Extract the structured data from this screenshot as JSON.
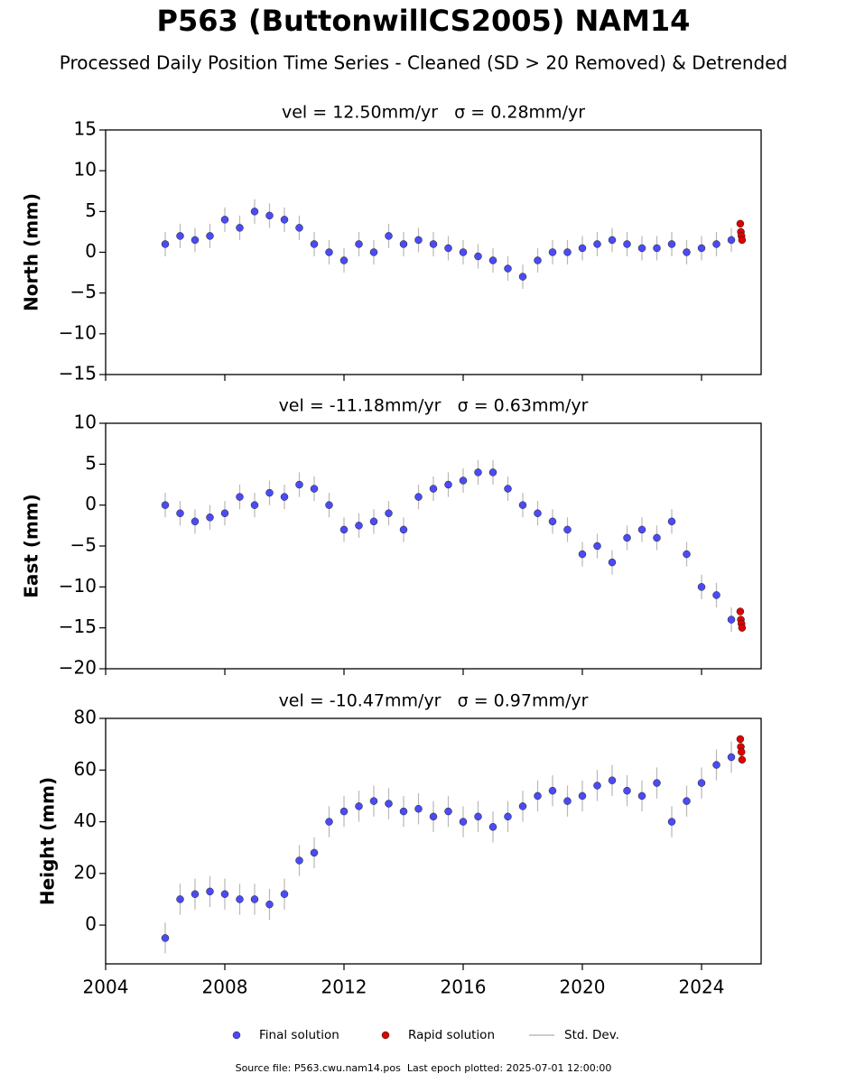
{
  "title": "P563 (ButtonwillCS2005) NAM14",
  "subtitle": "Processed Daily Position Time Series - Cleaned (SD > 20 Removed) & Detrended",
  "source": "Source file: P563.cwu.nam14.pos  Last epoch plotted: 2025-07-01 12:00:00",
  "error_label": "Std. Dev.",
  "chart_data": [
    {
      "type": "scatter",
      "title": "vel = 12.50mm/yr   σ = 0.28mm/yr",
      "ylabel": "North (mm)",
      "xlim": [
        2004,
        2026
      ],
      "xticks": [
        2004,
        2008,
        2012,
        2016,
        2020,
        2024
      ],
      "ylim": [
        -15,
        15
      ],
      "yticks": [
        {
          "value": -15,
          "label": "−15"
        },
        {
          "value": -10,
          "label": "−10"
        },
        {
          "value": -5,
          "label": "−5"
        },
        0,
        5,
        10,
        15
      ],
      "error": 1.5,
      "series": [
        {
          "name": "Final solution",
          "color": "#4b4bf5",
          "x": [
            2006,
            2006.5,
            2007,
            2007.5,
            2008,
            2008.5,
            2009,
            2009.5,
            2010,
            2010.5,
            2011,
            2011.5,
            2012,
            2012.5,
            2013,
            2013.5,
            2014,
            2014.5,
            2015,
            2015.5,
            2016,
            2016.5,
            2017,
            2017.5,
            2018,
            2018.5,
            2019,
            2019.5,
            2020,
            2020.5,
            2021,
            2021.5,
            2022,
            2022.5,
            2023,
            2023.5,
            2024,
            2024.5,
            2025
          ],
          "values": [
            1,
            2,
            1.5,
            2,
            4,
            3,
            5,
            4.5,
            4,
            3,
            1,
            0,
            -1,
            1,
            0,
            2,
            1,
            1.5,
            1,
            0.5,
            0,
            -0.5,
            -1,
            -2,
            -3,
            -1,
            0,
            0,
            0.5,
            1,
            1.5,
            1,
            0.5,
            0.5,
            1,
            0,
            0.5,
            1,
            1.5
          ]
        },
        {
          "name": "Rapid solution",
          "color": "#e00000",
          "x": [
            2025.3,
            2025.32,
            2025.34,
            2025.36
          ],
          "values": [
            3.5,
            2.5,
            2,
            1.5
          ]
        }
      ]
    },
    {
      "type": "scatter",
      "title": "vel = -11.18mm/yr   σ = 0.63mm/yr",
      "ylabel": "East (mm)",
      "xlim": [
        2004,
        2026
      ],
      "xticks": [
        2004,
        2008,
        2012,
        2016,
        2020,
        2024
      ],
      "ylim": [
        -20,
        10
      ],
      "yticks": [
        {
          "value": -20,
          "label": "−20"
        },
        {
          "value": -15,
          "label": "−15"
        },
        {
          "value": -10,
          "label": "−10"
        },
        {
          "value": -5,
          "label": "−5"
        },
        0,
        5,
        10
      ],
      "error": 1.5,
      "series": [
        {
          "color": "#4b4bf5",
          "x": [
            2006,
            2006.5,
            2007,
            2007.5,
            2008,
            2008.5,
            2009,
            2009.5,
            2010,
            2010.5,
            2011,
            2011.5,
            2012,
            2012.5,
            2013,
            2013.5,
            2014,
            2014.5,
            2015,
            2015.5,
            2016,
            2016.5,
            2017,
            2017.5,
            2018,
            2018.5,
            2019,
            2019.5,
            2020,
            2020.5,
            2021,
            2021.5,
            2022,
            2022.5,
            2023,
            2023.5,
            2024,
            2024.5,
            2025
          ],
          "values": [
            0,
            -1,
            -2,
            -1.5,
            -1,
            1,
            0,
            1.5,
            1,
            2.5,
            2,
            0,
            -3,
            -2.5,
            -2,
            -1,
            -3,
            1,
            2,
            2.5,
            3,
            4,
            4,
            2,
            0,
            -1,
            -2,
            -3,
            -6,
            -5,
            -7,
            -4,
            -3,
            -4,
            -2,
            -6,
            -10,
            -11,
            -14
          ]
        },
        {
          "color": "#e00000",
          "x": [
            2025.3,
            2025.32,
            2025.34,
            2025.36
          ],
          "values": [
            -13,
            -14,
            -14.5,
            -15
          ]
        }
      ]
    },
    {
      "type": "scatter",
      "title": "vel = -10.47mm/yr   σ = 0.97mm/yr",
      "ylabel": "Height (mm)",
      "xlim": [
        2004,
        2026
      ],
      "xticks": [
        2004,
        2008,
        2012,
        2016,
        2020,
        2024
      ],
      "ylim": [
        -15,
        80
      ],
      "yticks": [
        0,
        20,
        40,
        60,
        80
      ],
      "error": 6,
      "series": [
        {
          "color": "#4b4bf5",
          "x": [
            2006,
            2006.5,
            2007,
            2007.5,
            2008,
            2008.5,
            2009,
            2009.5,
            2010,
            2010.5,
            2011,
            2011.5,
            2012,
            2012.5,
            2013,
            2013.5,
            2014,
            2014.5,
            2015,
            2015.5,
            2016,
            2016.5,
            2017,
            2017.5,
            2018,
            2018.5,
            2019,
            2019.5,
            2020,
            2020.5,
            2021,
            2021.5,
            2022,
            2022.5,
            2023,
            2023.5,
            2024,
            2024.5,
            2025
          ],
          "values": [
            -5,
            10,
            12,
            13,
            12,
            10,
            10,
            8,
            12,
            25,
            28,
            40,
            44,
            46,
            48,
            47,
            44,
            45,
            42,
            44,
            40,
            42,
            38,
            42,
            46,
            50,
            52,
            48,
            50,
            54,
            56,
            52,
            50,
            55,
            40,
            48,
            55,
            62,
            65
          ]
        },
        {
          "color": "#e00000",
          "x": [
            2025.3,
            2025.32,
            2025.34,
            2025.36
          ],
          "values": [
            72,
            69,
            67,
            64
          ]
        }
      ]
    }
  ]
}
